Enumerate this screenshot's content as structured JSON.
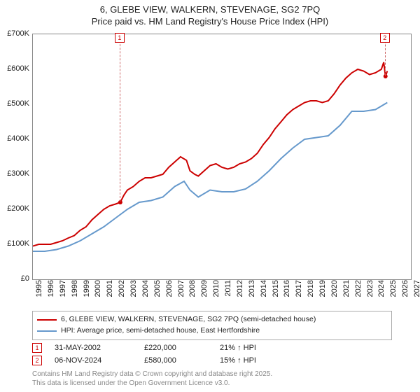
{
  "title": {
    "line1": "6, GLEBE VIEW, WALKERN, STEVENAGE, SG2 7PQ",
    "line2": "Price paid vs. HM Land Registry's House Price Index (HPI)"
  },
  "chart": {
    "type": "line",
    "background_color": "#ffffff",
    "border_color": "#888888",
    "xlim": [
      1995,
      2027
    ],
    "ylim": [
      0,
      700000
    ],
    "yticks": [
      0,
      100000,
      200000,
      300000,
      400000,
      500000,
      600000,
      700000
    ],
    "ytick_labels": [
      "£0",
      "£100K",
      "£200K",
      "£300K",
      "£400K",
      "£500K",
      "£600K",
      "£700K"
    ],
    "xticks": [
      1995,
      1996,
      1997,
      1998,
      1999,
      2000,
      2001,
      2002,
      2003,
      2004,
      2005,
      2006,
      2007,
      2008,
      2009,
      2010,
      2011,
      2012,
      2013,
      2014,
      2015,
      2016,
      2017,
      2018,
      2019,
      2020,
      2021,
      2022,
      2023,
      2024,
      2025,
      2026,
      2027
    ],
    "axis_fontsize": 11,
    "axis_color": "#222222",
    "series": [
      {
        "name": "price_paid",
        "color": "#cc0000",
        "line_width": 2,
        "data": [
          [
            1995,
            95000
          ],
          [
            1995.5,
            100000
          ],
          [
            1996,
            100000
          ],
          [
            1996.5,
            100000
          ],
          [
            1997,
            105000
          ],
          [
            1997.5,
            110000
          ],
          [
            1998,
            118000
          ],
          [
            1998.5,
            125000
          ],
          [
            1999,
            140000
          ],
          [
            1999.5,
            150000
          ],
          [
            2000,
            170000
          ],
          [
            2000.5,
            185000
          ],
          [
            2001,
            200000
          ],
          [
            2001.5,
            210000
          ],
          [
            2002,
            215000
          ],
          [
            2002.4,
            220000
          ],
          [
            2002.7,
            240000
          ],
          [
            2003,
            255000
          ],
          [
            2003.5,
            265000
          ],
          [
            2004,
            280000
          ],
          [
            2004.5,
            290000
          ],
          [
            2005,
            290000
          ],
          [
            2005.5,
            295000
          ],
          [
            2006,
            300000
          ],
          [
            2006.5,
            320000
          ],
          [
            2007,
            335000
          ],
          [
            2007.5,
            350000
          ],
          [
            2008,
            340000
          ],
          [
            2008.3,
            310000
          ],
          [
            2008.7,
            300000
          ],
          [
            2009,
            295000
          ],
          [
            2009.5,
            310000
          ],
          [
            2010,
            325000
          ],
          [
            2010.5,
            330000
          ],
          [
            2011,
            320000
          ],
          [
            2011.5,
            315000
          ],
          [
            2012,
            320000
          ],
          [
            2012.5,
            330000
          ],
          [
            2013,
            335000
          ],
          [
            2013.5,
            345000
          ],
          [
            2014,
            360000
          ],
          [
            2014.5,
            385000
          ],
          [
            2015,
            405000
          ],
          [
            2015.5,
            430000
          ],
          [
            2016,
            450000
          ],
          [
            2016.5,
            470000
          ],
          [
            2017,
            485000
          ],
          [
            2017.5,
            495000
          ],
          [
            2018,
            505000
          ],
          [
            2018.5,
            510000
          ],
          [
            2019,
            510000
          ],
          [
            2019.5,
            505000
          ],
          [
            2020,
            510000
          ],
          [
            2020.5,
            530000
          ],
          [
            2021,
            555000
          ],
          [
            2021.5,
            575000
          ],
          [
            2022,
            590000
          ],
          [
            2022.5,
            600000
          ],
          [
            2023,
            595000
          ],
          [
            2023.5,
            585000
          ],
          [
            2024,
            590000
          ],
          [
            2024.5,
            600000
          ],
          [
            2024.7,
            620000
          ],
          [
            2024.85,
            580000
          ],
          [
            2025,
            595000
          ]
        ]
      },
      {
        "name": "hpi",
        "color": "#6699cc",
        "line_width": 2,
        "data": [
          [
            1995,
            80000
          ],
          [
            1996,
            80000
          ],
          [
            1997,
            85000
          ],
          [
            1998,
            95000
          ],
          [
            1999,
            110000
          ],
          [
            2000,
            130000
          ],
          [
            2001,
            150000
          ],
          [
            2002,
            175000
          ],
          [
            2003,
            200000
          ],
          [
            2004,
            220000
          ],
          [
            2005,
            225000
          ],
          [
            2006,
            235000
          ],
          [
            2007,
            265000
          ],
          [
            2007.8,
            280000
          ],
          [
            2008.3,
            255000
          ],
          [
            2009,
            235000
          ],
          [
            2010,
            255000
          ],
          [
            2011,
            250000
          ],
          [
            2012,
            250000
          ],
          [
            2013,
            258000
          ],
          [
            2014,
            280000
          ],
          [
            2015,
            310000
          ],
          [
            2016,
            345000
          ],
          [
            2017,
            375000
          ],
          [
            2018,
            400000
          ],
          [
            2019,
            405000
          ],
          [
            2020,
            410000
          ],
          [
            2021,
            440000
          ],
          [
            2022,
            480000
          ],
          [
            2023,
            480000
          ],
          [
            2024,
            485000
          ],
          [
            2025,
            505000
          ]
        ]
      }
    ],
    "markers": [
      {
        "label": "1",
        "x": 2002.4,
        "y": 220000
      },
      {
        "label": "2",
        "x": 2024.85,
        "y": 580000
      }
    ],
    "marker_box_color": "#cc0000"
  },
  "legend": {
    "items": [
      {
        "color": "#cc0000",
        "label": "6, GLEBE VIEW, WALKERN, STEVENAGE, SG2 7PQ (semi-detached house)"
      },
      {
        "color": "#6699cc",
        "label": "HPI: Average price, semi-detached house, East Hertfordshire"
      }
    ]
  },
  "events": [
    {
      "marker": "1",
      "date": "31-MAY-2002",
      "price": "£220,000",
      "delta": "21% ↑ HPI"
    },
    {
      "marker": "2",
      "date": "06-NOV-2024",
      "price": "£580,000",
      "delta": "15% ↑ HPI"
    }
  ],
  "footer": {
    "line1": "Contains HM Land Registry data © Crown copyright and database right 2025.",
    "line2": "This data is licensed under the Open Government Licence v3.0."
  }
}
